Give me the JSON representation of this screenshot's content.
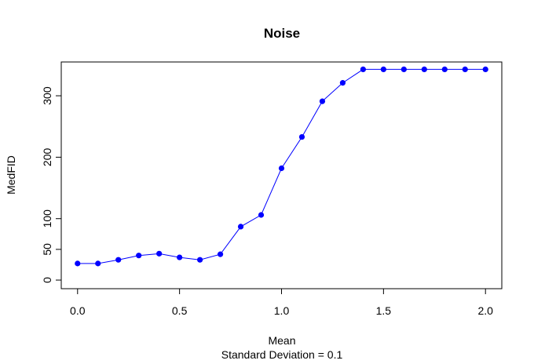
{
  "chart_data": {
    "type": "line",
    "title": "Noise",
    "xlabel": "Mean",
    "subtitle": "Standard Deviation = 0.1",
    "ylabel": "MedFID",
    "xlim": [
      -0.08,
      2.08
    ],
    "ylim": [
      -14,
      355
    ],
    "x_ticks": [
      0.0,
      0.5,
      1.0,
      1.5,
      2.0
    ],
    "x_tick_labels": [
      "0.0",
      "0.5",
      "1.0",
      "1.5",
      "2.0"
    ],
    "y_ticks": [
      0,
      50,
      100,
      200,
      300
    ],
    "y_tick_labels": [
      "0",
      "50",
      "100",
      "200",
      "300"
    ],
    "grid": false,
    "series": [
      {
        "color": "#0000ff",
        "x": [
          0.0,
          0.1,
          0.2,
          0.3,
          0.4,
          0.5,
          0.6,
          0.7,
          0.8,
          0.9,
          1.0,
          1.1,
          1.2,
          1.3,
          1.4,
          1.5,
          1.6,
          1.7,
          1.8,
          1.9,
          2.0
        ],
        "y": [
          27,
          27,
          33,
          40,
          43,
          37,
          33,
          42,
          87,
          106,
          182,
          233,
          291,
          321,
          343,
          343,
          343,
          343,
          343,
          343,
          343
        ]
      }
    ]
  }
}
